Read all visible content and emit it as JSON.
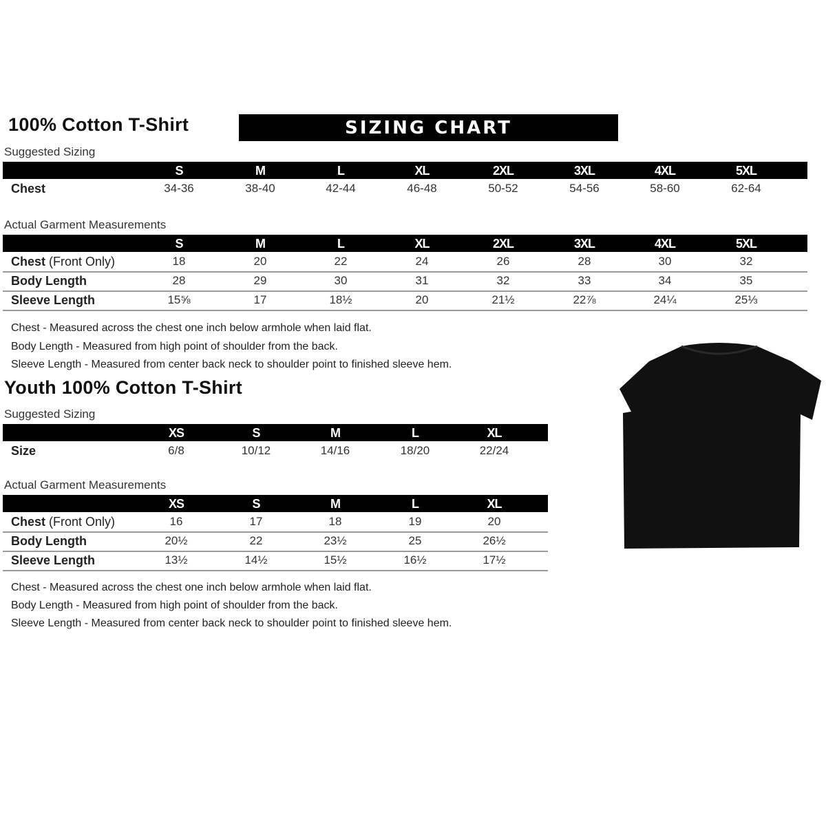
{
  "adult": {
    "title": "100% Cotton T-Shirt",
    "banner": "SIZING CHART",
    "suggested": {
      "label": "Suggested Sizing",
      "sizes": [
        "S",
        "M",
        "L",
        "XL",
        "2XL",
        "3XL",
        "4XL",
        "5XL"
      ],
      "rows": [
        {
          "label": "Chest",
          "values": [
            "34-36",
            "38-40",
            "42-44",
            "46-48",
            "50-52",
            "54-56",
            "58-60",
            "62-64"
          ]
        }
      ]
    },
    "actual": {
      "label": "Actual Garment Measurements",
      "sizes": [
        "S",
        "M",
        "L",
        "XL",
        "2XL",
        "3XL",
        "4XL",
        "5XL"
      ],
      "rows": [
        {
          "label": "Chest",
          "label_suffix": " (Front Only)",
          "values": [
            "18",
            "20",
            "22",
            "24",
            "26",
            "28",
            "30",
            "32"
          ]
        },
        {
          "label": "Body Length",
          "values": [
            "28",
            "29",
            "30",
            "31",
            "32",
            "33",
            "34",
            "35"
          ]
        },
        {
          "label": "Sleeve Length",
          "values": [
            "15⅝",
            "17",
            "18½",
            "20",
            "21½",
            "22⅞",
            "24¼",
            "25⅓"
          ]
        }
      ]
    },
    "notes": [
      "Chest - Measured across the chest one inch below armhole when laid flat.",
      "Body Length - Measured from high point of shoulder from the back.",
      "Sleeve Length - Measured from center back neck to shoulder point to finished sleeve hem."
    ]
  },
  "youth": {
    "title": "Youth 100% Cotton T-Shirt",
    "suggested": {
      "label": "Suggested Sizing",
      "sizes": [
        "XS",
        "S",
        "M",
        "L",
        "XL"
      ],
      "rows": [
        {
          "label": "Size",
          "values": [
            "6/8",
            "10/12",
            "14/16",
            "18/20",
            "22/24"
          ]
        }
      ]
    },
    "actual": {
      "label": "Actual Garment Measurements",
      "sizes": [
        "XS",
        "S",
        "M",
        "L",
        "XL"
      ],
      "rows": [
        {
          "label": "Chest",
          "label_suffix": " (Front Only)",
          "values": [
            "16",
            "17",
            "18",
            "19",
            "20"
          ]
        },
        {
          "label": "Body Length",
          "values": [
            "20½",
            "22",
            "23½",
            "25",
            "26½"
          ]
        },
        {
          "label": "Sleeve Length",
          "values": [
            "13½",
            "14½",
            "15½",
            "16½",
            "17½"
          ]
        }
      ]
    },
    "notes": [
      "Chest - Measured across the chest one inch below armhole when laid flat.",
      "Body Length - Measured from high point of shoulder from the back.",
      "Sleeve Length - Measured from center back neck to shoulder point to finished sleeve hem."
    ]
  },
  "tshirt_image": {
    "icon": "black-tshirt-icon",
    "color": "#111111"
  }
}
